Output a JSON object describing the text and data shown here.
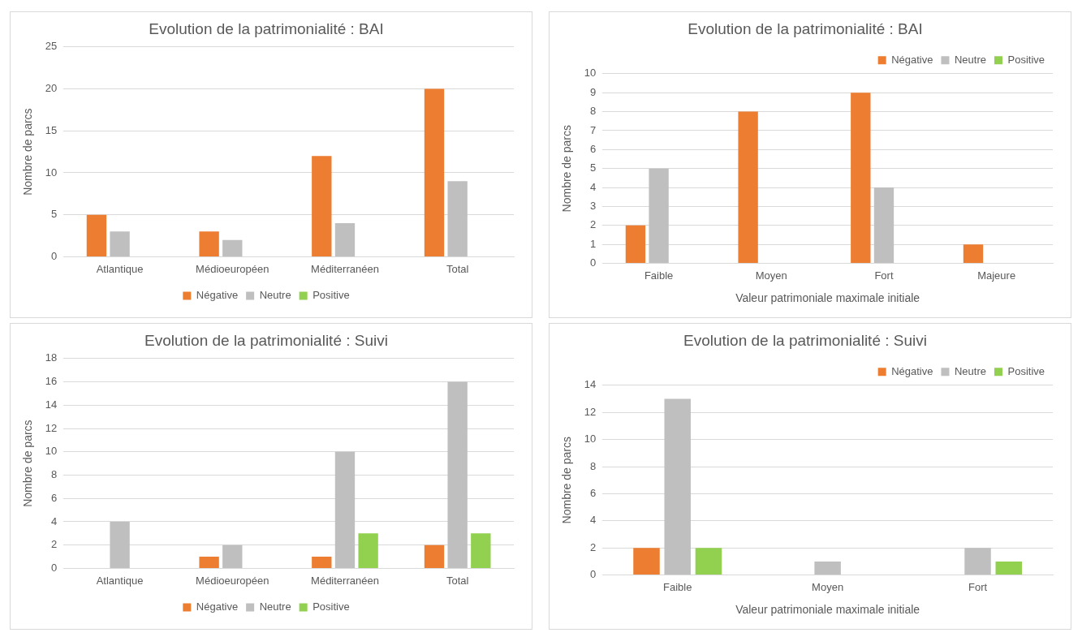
{
  "chart_data": [
    {
      "type": "bar",
      "title": "Evolution de la patrimonialité : BAI",
      "ylabel": "Nombre de parcs",
      "categories": [
        "Atlantique",
        "Médioeuropéen",
        "Méditerranéen",
        "Total"
      ],
      "series": [
        {
          "name": "Négative",
          "color": "#ed7d31",
          "values": [
            5,
            3,
            12,
            20
          ]
        },
        {
          "name": "Neutre",
          "color": "#bfbfbf",
          "values": [
            3,
            2,
            4,
            9
          ]
        },
        {
          "name": "Positive",
          "color": "#92d050",
          "values": [
            0,
            0,
            0,
            0
          ]
        }
      ],
      "ylim": [
        0,
        25
      ],
      "yticks": [
        0,
        5,
        10,
        15,
        20,
        25
      ],
      "grid": "y",
      "legend": "bottom"
    },
    {
      "type": "bar",
      "title": "Evolution de la patrimonialité : BAI",
      "xlabel": "Valeur patrimoniale maximale initiale",
      "ylabel": "Nombre de parcs",
      "categories": [
        "Faible",
        "Moyen",
        "Fort",
        "Majeure"
      ],
      "series": [
        {
          "name": "Négative",
          "color": "#ed7d31",
          "values": [
            2,
            8,
            9,
            1
          ]
        },
        {
          "name": "Neutre",
          "color": "#bfbfbf",
          "values": [
            5,
            0,
            4,
            0
          ]
        },
        {
          "name": "Positive",
          "color": "#92d050",
          "values": [
            0,
            0,
            0,
            0
          ]
        }
      ],
      "ylim": [
        0,
        10
      ],
      "yticks": [
        0,
        1,
        2,
        3,
        4,
        5,
        6,
        7,
        8,
        9,
        10
      ],
      "grid": "y",
      "legend": "top right"
    },
    {
      "type": "bar",
      "title": "Evolution de la patrimonialité : Suivi",
      "ylabel": "Nombre de parcs",
      "categories": [
        "Atlantique",
        "Médioeuropéen",
        "Méditerranéen",
        "Total"
      ],
      "series": [
        {
          "name": "Négative",
          "color": "#ed7d31",
          "values": [
            0,
            1,
            1,
            2
          ]
        },
        {
          "name": "Neutre",
          "color": "#bfbfbf",
          "values": [
            4,
            2,
            10,
            16
          ]
        },
        {
          "name": "Positive",
          "color": "#92d050",
          "values": [
            0,
            0,
            3,
            3
          ]
        }
      ],
      "ylim": [
        0,
        18
      ],
      "yticks": [
        0,
        2,
        4,
        6,
        8,
        10,
        12,
        14,
        16,
        18
      ],
      "grid": "y",
      "legend": "bottom"
    },
    {
      "type": "bar",
      "title": "Evolution de la patrimonialité : Suivi",
      "xlabel": "Valeur patrimoniale maximale initiale",
      "ylabel": "Nombre de parcs",
      "categories": [
        "Faible",
        "Moyen",
        "Fort"
      ],
      "series": [
        {
          "name": "Négative",
          "color": "#ed7d31",
          "values": [
            2,
            0,
            0
          ]
        },
        {
          "name": "Neutre",
          "color": "#bfbfbf",
          "values": [
            13,
            1,
            2
          ]
        },
        {
          "name": "Positive",
          "color": "#92d050",
          "values": [
            2,
            0,
            1
          ]
        }
      ],
      "ylim": [
        0,
        14
      ],
      "yticks": [
        0,
        2,
        4,
        6,
        8,
        10,
        12,
        14
      ],
      "grid": "y",
      "legend": "top right"
    }
  ]
}
